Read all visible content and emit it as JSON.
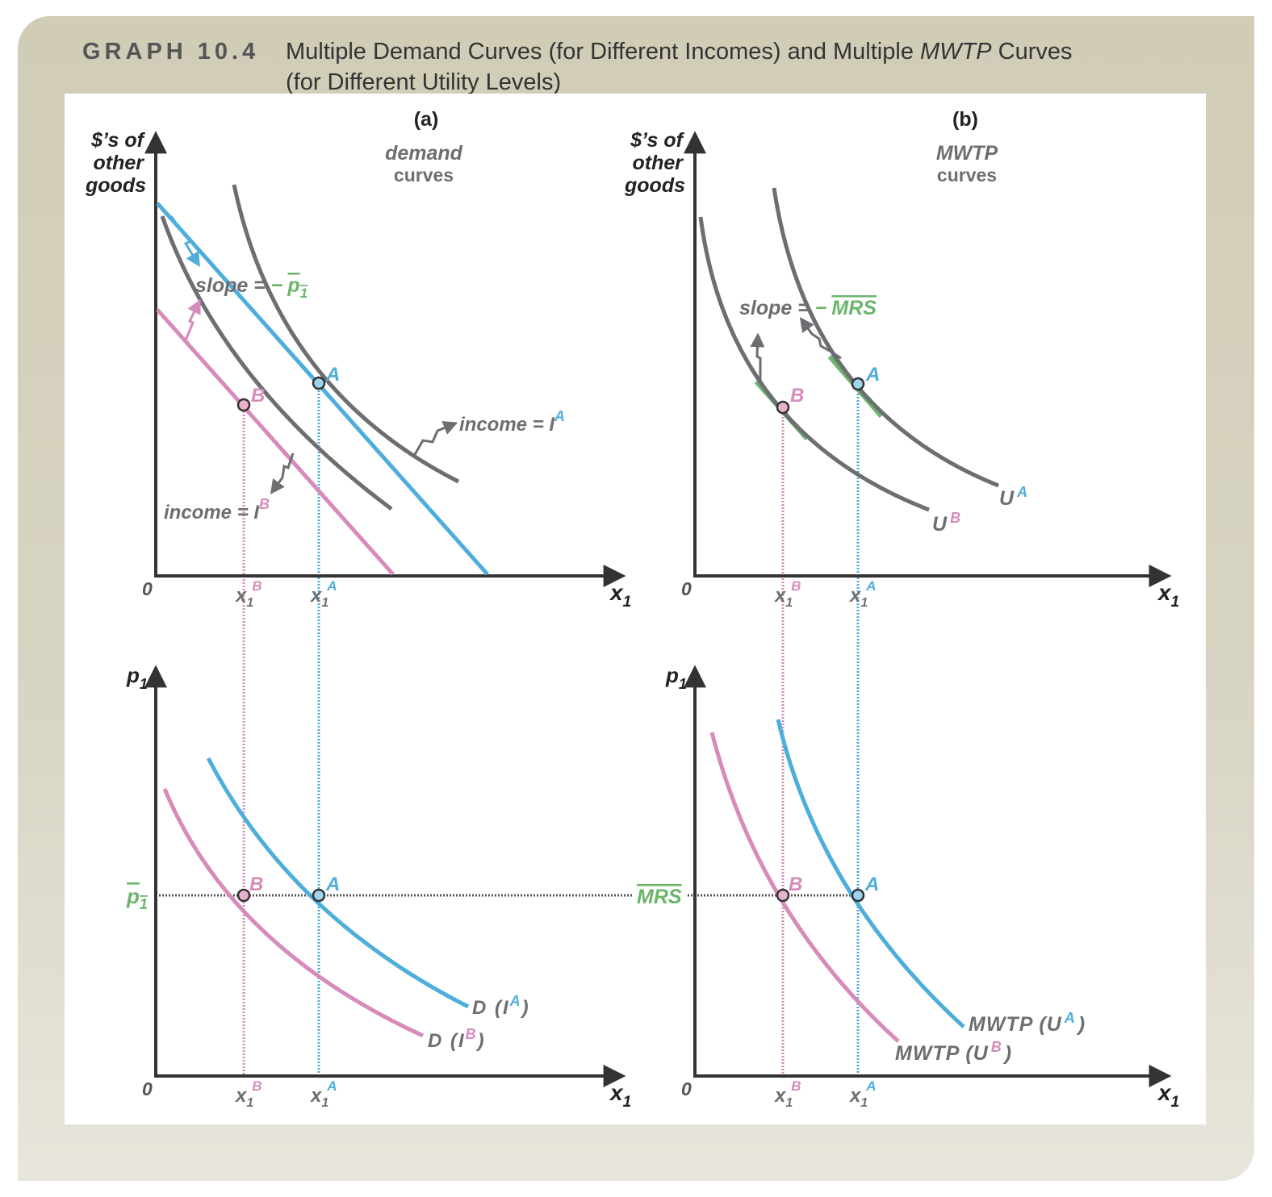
{
  "header": {
    "graph_number": "GRAPH 10.4",
    "title_part1": "Multiple Demand Curves (for Different Incomes) and Multiple ",
    "title_italic": "MWTP",
    "title_part2": " Curves",
    "title_line2": "(for Different Utility Levels)"
  },
  "panels": {
    "a": {
      "label": "(a)",
      "subtitle_line1": "demand",
      "subtitle_line2": "curves"
    },
    "b": {
      "label": "(b)",
      "subtitle_line1": "MWTP",
      "subtitle_line2": "curves"
    }
  },
  "axes": {
    "y_top_line1": "$’s of",
    "y_top_line2": "other",
    "y_top_line3": "goods",
    "y_bottom": "p",
    "y_bottom_sub": "1",
    "x": "x",
    "x_sub": "1",
    "origin": "0"
  },
  "ticks": {
    "x1B_base": "x",
    "x1B_sub": "1",
    "x1B_sup": "B",
    "x1A_base": "x",
    "x1A_sub": "1",
    "x1A_sup": "A"
  },
  "points": {
    "A": "A",
    "B": "B"
  },
  "annotations": {
    "slope_text": "slope = ",
    "minus": "−",
    "p1_base": "p",
    "p1_sub": "1",
    "mrs": "MRS",
    "income": "income = ",
    "income_I": "I",
    "sup_A": "A",
    "sup_B": "B"
  },
  "curve_labels": {
    "UA_base": "U",
    "UB_base": "U",
    "D_prefix": "D (",
    "D_I": "I",
    "D_suffix": ")",
    "MWTP_prefix": "MWTP (",
    "MWTP_U": "U",
    "MWTP_suffix": ")"
  },
  "colors": {
    "blue": "#4eaedb",
    "pink": "#d68bba",
    "gray": "#6d6e71",
    "green": "#6ab56a",
    "axis": "#333333",
    "dotted": "#555555"
  }
}
